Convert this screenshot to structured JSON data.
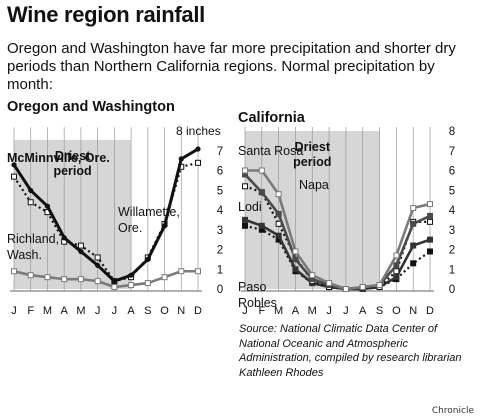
{
  "header": {
    "title": "Wine region rainfall",
    "subtitle": "Oregon and Washington have far more precipitation and shorter dry periods than Northern California regions. Normal precipitation by month:"
  },
  "source_note": "Source: National Climatic Data Center of National Oceanic and Atmospheric Administration, compiled by research librarian Kathleen Rhodes",
  "credit": "Chronicle",
  "colors": {
    "shade": "#d6d6d6",
    "grid": "#999999",
    "dark": "#111111",
    "mid": "#7a7a7a"
  },
  "chart_data": [
    {
      "type": "line",
      "title": "Oregon and Washington",
      "unit_label": "8 inches",
      "categories": [
        "J",
        "F",
        "M",
        "A",
        "M",
        "J",
        "J",
        "A",
        "S",
        "O",
        "N",
        "D"
      ],
      "ylim": [
        0,
        8
      ],
      "y_ticks": [
        0,
        1,
        2,
        3,
        4,
        5,
        6,
        7
      ],
      "shaded_label": "Driest period",
      "shaded_range": [
        "J",
        "A"
      ],
      "grid": "vertical",
      "series": [
        {
          "name": "McMinnville, Ore.",
          "style": "solid-black",
          "values": [
            6.3,
            5.0,
            4.2,
            2.6,
            1.9,
            1.2,
            0.4,
            0.7,
            1.5,
            3.2,
            6.6,
            7.1
          ]
        },
        {
          "name": "Willamette, Ore.",
          "style": "dotted-open",
          "values": [
            5.7,
            4.4,
            3.9,
            2.4,
            2.2,
            1.6,
            0.4,
            0.6,
            1.6,
            3.3,
            6.2,
            6.4
          ]
        },
        {
          "name": "Richland, Wash.",
          "style": "gray-open",
          "values": [
            0.9,
            0.7,
            0.6,
            0.5,
            0.5,
            0.4,
            0.1,
            0.2,
            0.3,
            0.6,
            0.9,
            0.9
          ]
        }
      ]
    },
    {
      "type": "line",
      "title": "California",
      "categories": [
        "J",
        "F",
        "M",
        "A",
        "M",
        "J",
        "J",
        "A",
        "S",
        "O",
        "N",
        "D"
      ],
      "ylim": [
        0,
        8
      ],
      "y_ticks": [
        0,
        1,
        2,
        3,
        4,
        5,
        6,
        7,
        8
      ],
      "shaded_label": "Driest period",
      "shaded_range": [
        "J",
        "S"
      ],
      "grid": "vertical",
      "series": [
        {
          "name": "Santa Rosa",
          "style": "gray-open",
          "values": [
            6.0,
            6.0,
            4.8,
            1.9,
            0.7,
            0.3,
            0.0,
            0.1,
            0.2,
            1.7,
            4.1,
            4.3
          ]
        },
        {
          "name": "Napa",
          "style": "gray-solid",
          "values": [
            5.8,
            4.9,
            3.8,
            1.5,
            0.5,
            0.2,
            0.0,
            0.1,
            0.2,
            1.2,
            3.3,
            3.7
          ]
        },
        {
          "name": "Lodi",
          "style": "dotted-open",
          "values": [
            5.2,
            4.9,
            3.3,
            1.6,
            0.4,
            0.1,
            0.0,
            0.1,
            0.1,
            0.9,
            3.4,
            3.4
          ]
        },
        {
          "name": "Paso Robles",
          "style": "dark-solid",
          "values": [
            3.5,
            3.2,
            2.7,
            1.0,
            0.3,
            0.1,
            0.0,
            0.0,
            0.1,
            0.6,
            2.2,
            2.5
          ]
        },
        {
          "name": "",
          "style": "dotted-black",
          "values": [
            3.2,
            3.0,
            2.5,
            0.9,
            0.3,
            0.1,
            0.0,
            0.0,
            0.1,
            0.5,
            1.3,
            1.9
          ]
        }
      ]
    }
  ]
}
